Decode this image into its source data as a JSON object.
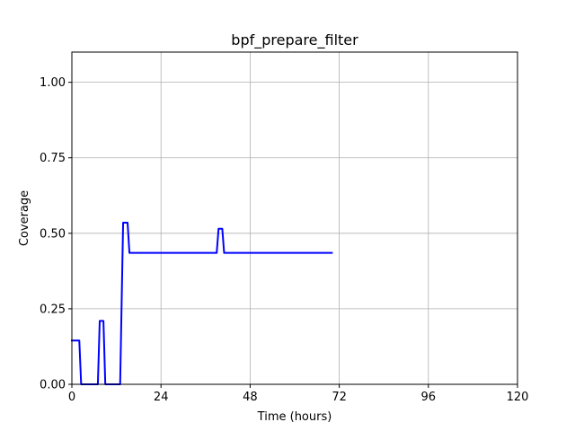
{
  "chart_data": {
    "type": "line",
    "title": "bpf_prepare_filter",
    "xlabel": "Time (hours)",
    "ylabel": "Coverage",
    "xlim": [
      0,
      120
    ],
    "ylim": [
      0,
      1.1
    ],
    "x_ticks": [
      0,
      24,
      48,
      72,
      96,
      120
    ],
    "x_tick_labels": [
      "0",
      "24",
      "48",
      "72",
      "96",
      "120"
    ],
    "y_ticks": [
      0.0,
      0.25,
      0.5,
      0.75,
      1.0
    ],
    "y_tick_labels": [
      "0.00",
      "0.25",
      "0.50",
      "0.75",
      "1.00"
    ],
    "grid": true,
    "series": [
      {
        "color": "#0000ff",
        "x": [
          0,
          2,
          2.5,
          7,
          7.5,
          8.5,
          9,
          13,
          13.8,
          15,
          15.5,
          39,
          39.5,
          40.5,
          41,
          70
        ],
        "y": [
          0.145,
          0.145,
          0,
          0,
          0.21,
          0.21,
          0,
          0,
          0.535,
          0.535,
          0.435,
          0.435,
          0.515,
          0.515,
          0.435,
          0.435
        ]
      }
    ]
  }
}
